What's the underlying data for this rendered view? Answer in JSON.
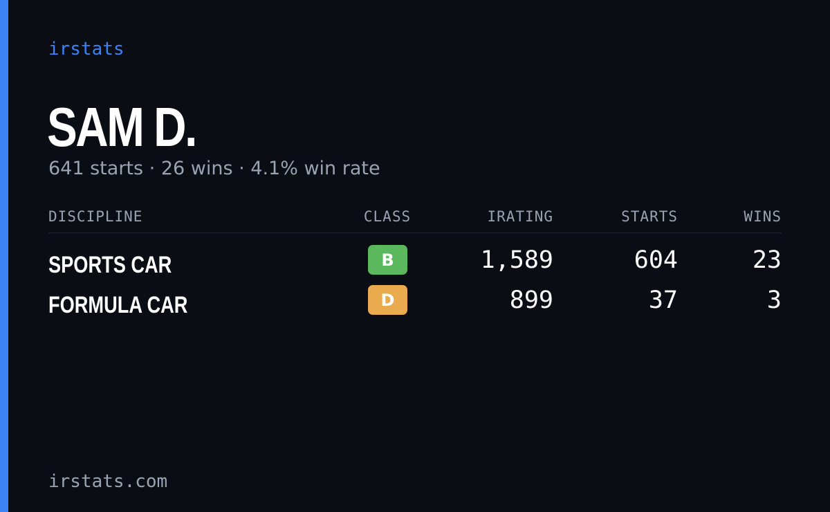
{
  "header": {
    "brand": "irstats",
    "name": "SAM D.",
    "summary": "641 starts · 26 wins · 4.1% win rate"
  },
  "table": {
    "columns": [
      "DISCIPLINE",
      "CLASS",
      "IRATING",
      "STARTS",
      "WINS"
    ],
    "rows": [
      [
        "SPORTS CAR",
        "B",
        "1,589",
        "604",
        "23"
      ],
      [
        "FORMULA CAR",
        "D",
        "899",
        "37",
        "3"
      ]
    ],
    "class_colors": [
      "#5cb85c",
      "#e9ab4e"
    ]
  },
  "footer": {
    "url": "irstats.com"
  }
}
